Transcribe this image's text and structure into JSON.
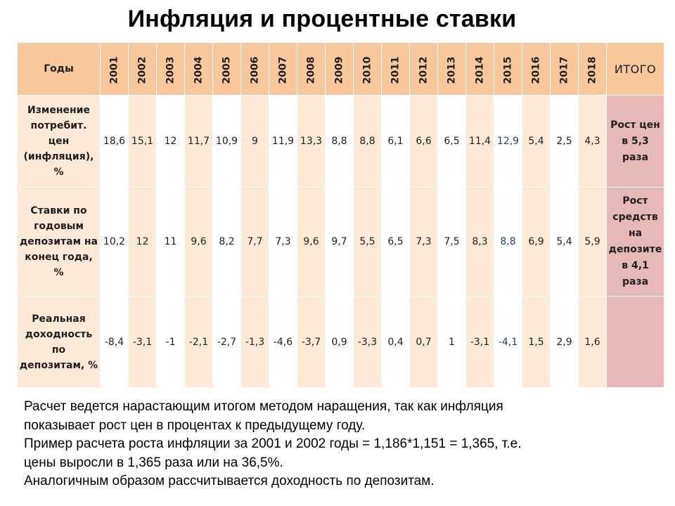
{
  "title": "Инфляция и процентные ставки",
  "table": {
    "corner_label": "Годы",
    "total_header": "ИТОГО",
    "years": [
      "2001",
      "2002",
      "2003",
      "2004",
      "2005",
      "2006",
      "2007",
      "2008",
      "2009",
      "2010",
      "2011",
      "2012",
      "2013",
      "2014",
      "2015",
      "2016",
      "2017",
      "2018"
    ],
    "rows": [
      {
        "label": "Изменение потребит. цен (инфляция), %",
        "values": [
          "18,6",
          "15,1",
          "12",
          "11,7",
          "10,9",
          "9",
          "11,9",
          "13,3",
          "8,8",
          "8,8",
          "6,1",
          "6,6",
          "6,5",
          "11,4",
          "12,9",
          "5,4",
          "2,5",
          "4,3"
        ],
        "total": "Рост цен в 5,3 раза"
      },
      {
        "label": "Ставки по годовым депозитам на конец года, %",
        "values": [
          "10,2",
          "12",
          "11",
          "9,6",
          "8,2",
          "7,7",
          "7,3",
          "9,6",
          "9,7",
          "5,5",
          "6,5",
          "7,3",
          "7,5",
          "8,3",
          "8,8",
          "6,9",
          "5,4",
          "5,9"
        ],
        "total": "Рост средств на депозите в 4,1 раза"
      },
      {
        "label": "Реальная доходность по депозитам, %",
        "values": [
          "-8,4",
          "-3,1",
          "-1",
          "-2,1",
          "-2,7",
          "-1,3",
          "-4,6",
          "-3,7",
          "0,9",
          "-3,3",
          "0,4",
          "0,7",
          "1",
          "-3,1",
          "-4,1",
          "1,5",
          "2,9",
          "1,6"
        ],
        "total": ""
      }
    ],
    "highlight_color_2015": "#1f3d8a"
  },
  "notes": [
    "Расчет ведется нарастающим итогом методом наращения, так как инфляция\nпоказывает рост цен в процентах к предыдущему году.",
    "Пример расчета роста инфляции за 2001 и 2002 годы = 1,186*1,151 = 1,365, т.е.\nцены выросли в 1,365 раза или на 36,5%.",
    "Аналогичным образом рассчитывается доходность по депозитам."
  ],
  "colors": {
    "header_bg": "#f8c79a",
    "light_column_bg": "#fde9d8",
    "total_column_bg": "#e6b9b8"
  }
}
